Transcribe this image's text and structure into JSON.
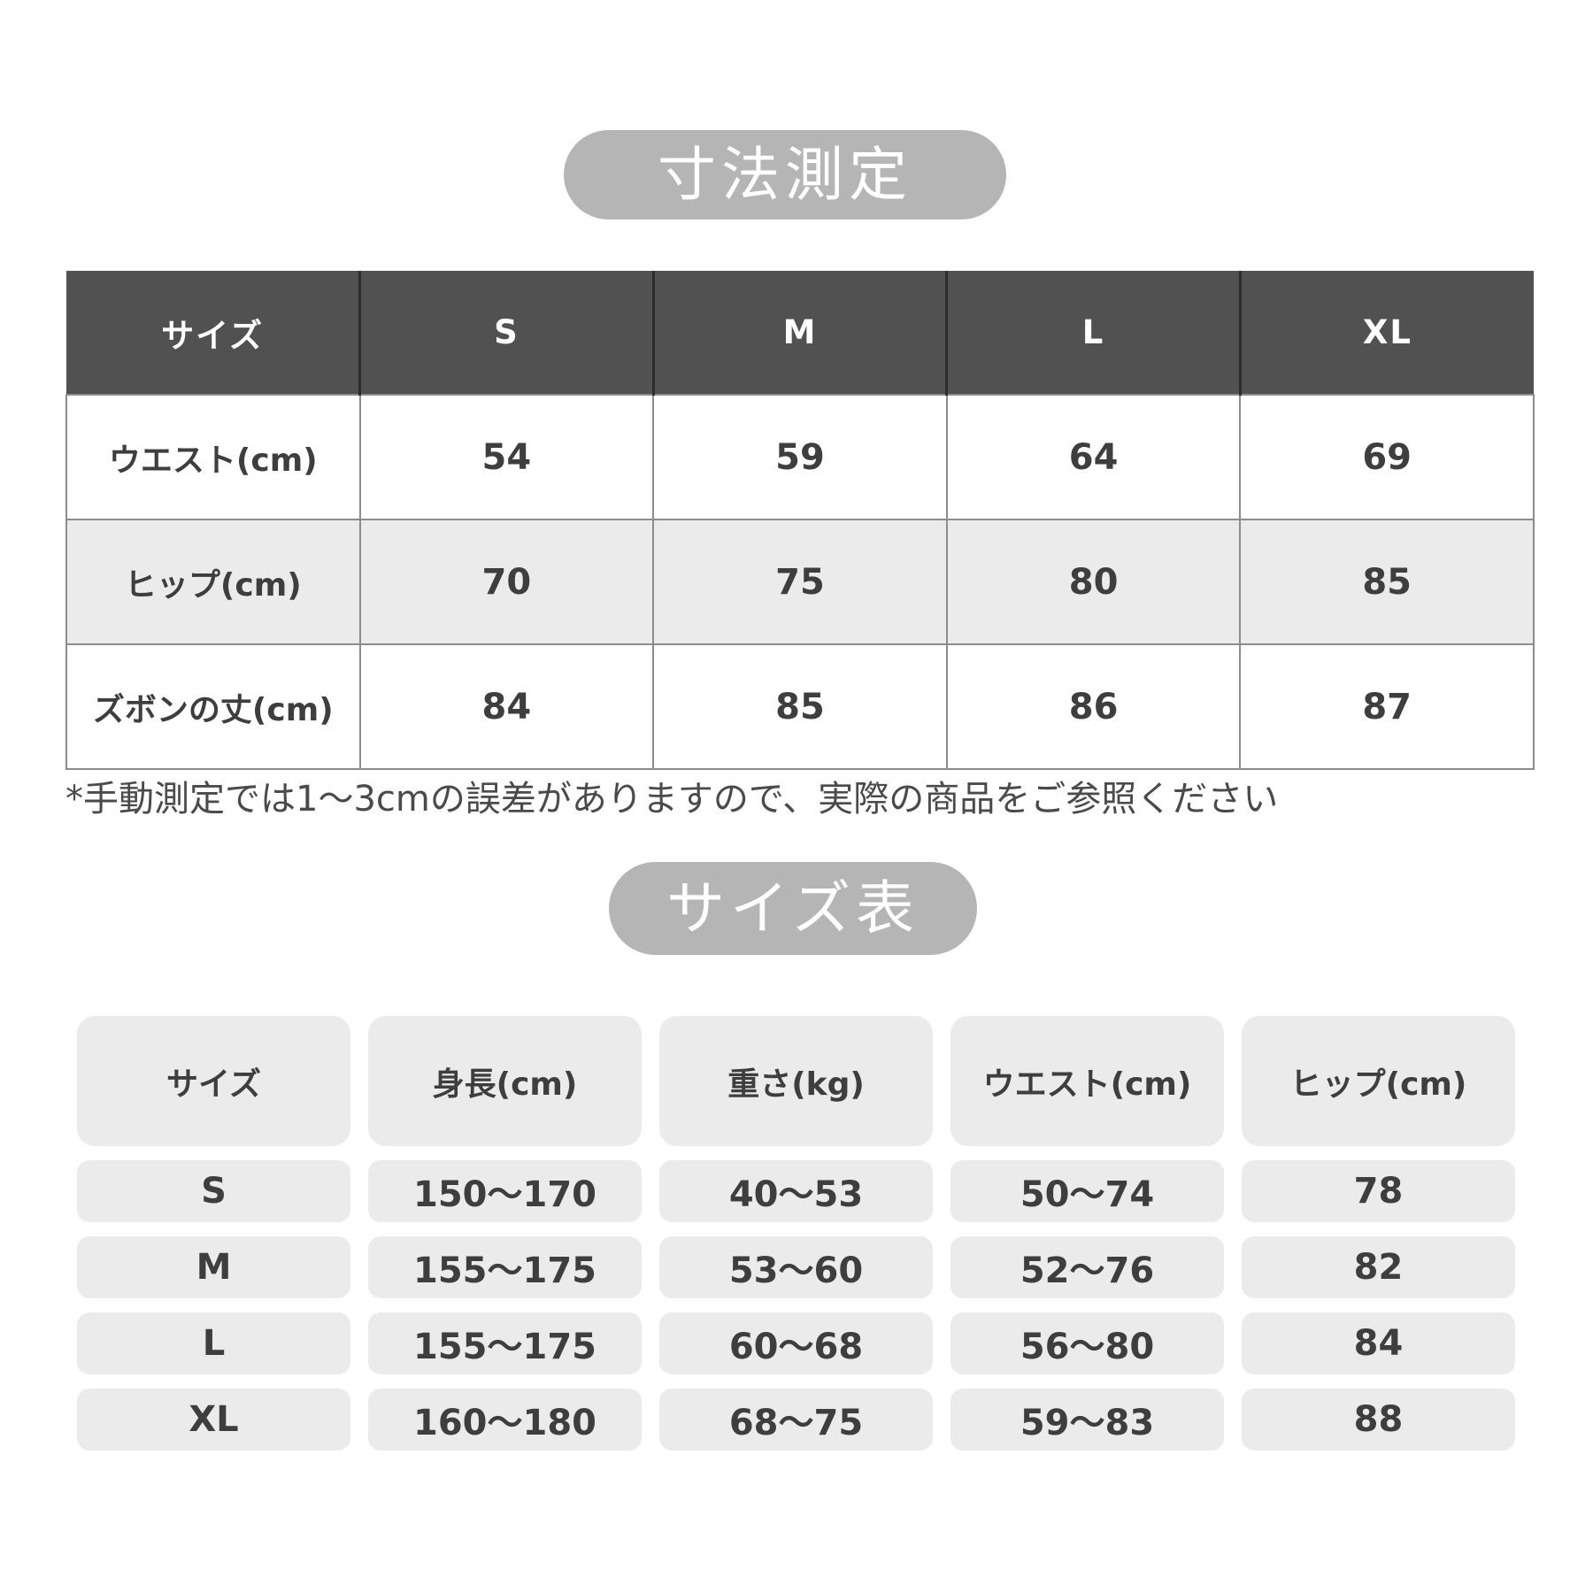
{
  "colors": {
    "badge_bg": "#b5b5b5",
    "table1_header_bg": "#515151",
    "table1_header_text": "#ffffff",
    "zebra_gray": "#ebebeb",
    "body_text": "#3e3e3e",
    "border_gray": "#8c8c8c",
    "note_text": "#4a4a4a"
  },
  "measurement_section": {
    "badge_label": "寸法測定",
    "table": {
      "columns": [
        "サイズ",
        "S",
        "M",
        "L",
        "XL"
      ],
      "rows": [
        {
          "label": "ウエスト(cm)",
          "values": [
            "54",
            "59",
            "64",
            "69"
          ]
        },
        {
          "label": "ヒップ(cm)",
          "values": [
            "70",
            "75",
            "80",
            "85"
          ]
        },
        {
          "label": "ズボンの丈(cm)",
          "values": [
            "84",
            "85",
            "86",
            "87"
          ]
        }
      ]
    },
    "note": "*手動測定では1〜3cmの誤差がありますので、実際の商品をご参照ください"
  },
  "size_chart_section": {
    "badge_label": "サイズ表",
    "table": {
      "columns": [
        "サイズ",
        "身長(cm)",
        "重さ(kg)",
        "ウエスト(cm)",
        "ヒップ(cm)"
      ],
      "rows": [
        {
          "label": "S",
          "values": [
            "150〜170",
            "40〜53",
            "50〜74",
            "78"
          ]
        },
        {
          "label": "M",
          "values": [
            "155〜175",
            "53〜60",
            "52〜76",
            "82"
          ]
        },
        {
          "label": "L",
          "values": [
            "155〜175",
            "60〜68",
            "56〜80",
            "84"
          ]
        },
        {
          "label": "XL",
          "values": [
            "160〜180",
            "68〜75",
            "59〜83",
            "88"
          ]
        }
      ]
    }
  }
}
